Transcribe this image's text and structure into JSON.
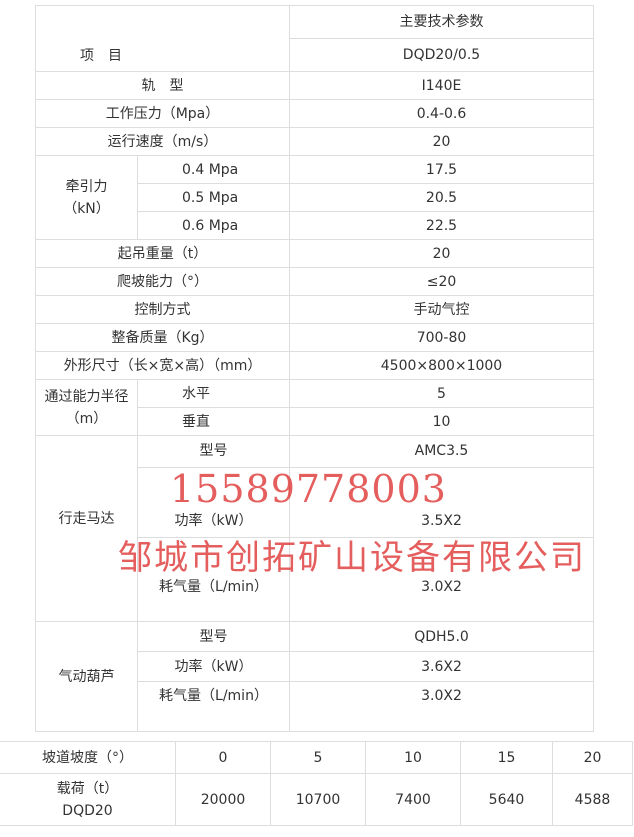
{
  "spec_table": {
    "item_header": "项　目",
    "params_header": "主要技术参数",
    "model": "DQD20/0.5",
    "rows": [
      {
        "label": "轨　型",
        "value": "I140E"
      },
      {
        "label": "工作压力（Mpa）",
        "value": "0.4-0.6"
      },
      {
        "label": "运行速度（m/s）",
        "value": "20"
      }
    ],
    "traction": {
      "label": "牵引力（kN）",
      "rows": [
        {
          "label": "0.4 Mpa",
          "value": "17.5"
        },
        {
          "label": "0.5 Mpa",
          "value": "20.5"
        },
        {
          "label": "0.6 Mpa",
          "value": "22.5"
        }
      ]
    },
    "rows2": [
      {
        "label": "起吊重量（t）",
        "value": "20"
      },
      {
        "label": "爬坡能力（°）",
        "value": "≤20"
      },
      {
        "label": "控制方式",
        "value": "手动气控"
      },
      {
        "label": "整备质量（Kg）",
        "value": "700-80"
      },
      {
        "label": "外形尺寸（长×宽×高）（mm）",
        "value": "4500×800×1000"
      }
    ],
    "radius": {
      "label": "通过能力半径（m）",
      "rows": [
        {
          "label": "水平",
          "value": "5"
        },
        {
          "label": "垂直",
          "value": "10"
        }
      ]
    },
    "motor": {
      "label": "行走马达",
      "rows": [
        {
          "label": "型号",
          "value": "AMC3.5"
        },
        {
          "label": "功率（kW）",
          "value": "3.5X2"
        },
        {
          "label": "耗气量（L/min）",
          "value": "3.0X2"
        }
      ]
    },
    "hoist": {
      "label": "气动葫芦",
      "rows": [
        {
          "label": "型号",
          "value": "QDH5.0"
        },
        {
          "label": "功率（kW）",
          "value": "3.6X2"
        },
        {
          "label": "耗气量（L/min）",
          "value": "3.0X2"
        }
      ]
    }
  },
  "load_table": {
    "slope_label": "坡道坡度（°）",
    "slopes": [
      "0",
      "5",
      "10",
      "15",
      "20"
    ],
    "load_label": "载荷（t）DQD20",
    "loads": [
      "20000",
      "10700",
      "7400",
      "5640",
      "4588"
    ]
  },
  "watermark": {
    "phone": "15589778003",
    "company": "邹城市创拓矿山设备有限公司",
    "color": "#dc2828"
  }
}
